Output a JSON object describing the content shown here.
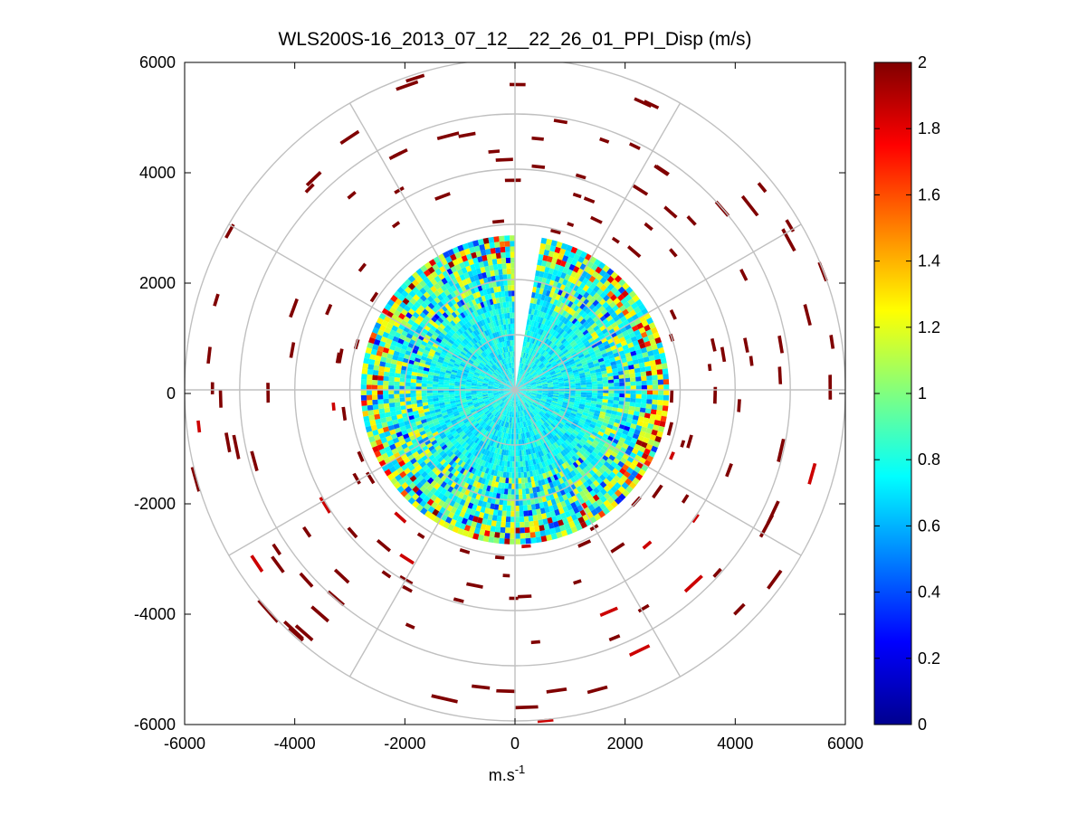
{
  "chart_data": {
    "type": "heatmap",
    "subtype": "polar-ppi",
    "title": "WLS200S-16_2013_07_12__22_26_01_PPI_Disp (m/s)",
    "xlabel": "m.s",
    "xlabel_superscript": "-1",
    "ylabel": "",
    "xlim": [
      -6000,
      6000
    ],
    "ylim": [
      -6000,
      6000
    ],
    "x_ticks": [
      -6000,
      -4000,
      -2000,
      0,
      2000,
      4000,
      6000
    ],
    "y_ticks": [
      -6000,
      -4000,
      -2000,
      0,
      2000,
      4000,
      6000
    ],
    "x_tick_labels": [
      "-6000",
      "-4000",
      "-2000",
      "0",
      "2000",
      "4000",
      "6000"
    ],
    "y_tick_labels": [
      "-6000",
      "-4000",
      "-2000",
      "0",
      "2000",
      "4000",
      "6000"
    ],
    "grid": true,
    "polar_grid": {
      "ring_radii": [
        1000,
        2000,
        3000,
        4000,
        5000,
        6000
      ],
      "spoke_angles_deg": [
        0,
        30,
        60,
        90,
        120,
        150,
        180,
        210,
        240,
        270,
        300,
        330
      ]
    },
    "colormap": "jet",
    "colorbar": {
      "min": 0,
      "max": 2,
      "ticks": [
        0,
        0.2,
        0.4,
        0.6,
        0.8,
        1,
        1.2,
        1.4,
        1.6,
        1.8,
        2
      ],
      "tick_labels": [
        "0",
        "0.2",
        "0.4",
        "0.6",
        "0.8",
        "1",
        "1.2",
        "1.4",
        "1.6",
        "1.8",
        "2"
      ]
    },
    "dense_region": {
      "max_range_m": 2800,
      "dominant_value_range": [
        0.6,
        0.9
      ],
      "missing_sector_deg": [
        0,
        10
      ]
    },
    "outer_scatter": {
      "range_m": [
        2800,
        6000
      ],
      "dominant_value": 2,
      "secondary_value": 1.85
    }
  },
  "colors": {
    "jet": [
      "#00008f",
      "#0000ff",
      "#0080ff",
      "#00ffff",
      "#80ff80",
      "#ffff00",
      "#ff8000",
      "#ff0000",
      "#800000"
    ],
    "grid": "#c0c0c0",
    "background": "#ffffff"
  }
}
